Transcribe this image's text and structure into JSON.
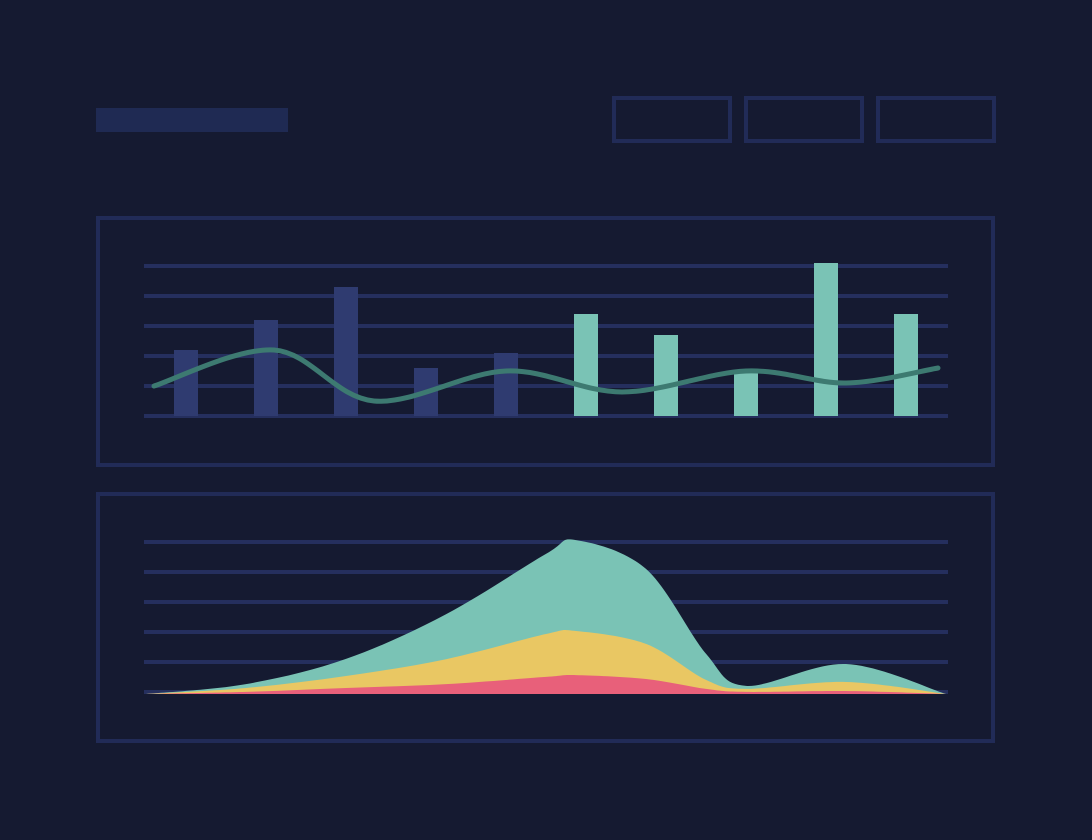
{
  "chart_data": [
    {
      "type": "bar-line",
      "categories": [
        null,
        null,
        null,
        null,
        null,
        null,
        null,
        null,
        null,
        null
      ],
      "values": [
        2.2,
        3.2,
        4.3,
        1.6,
        2.1,
        3.4,
        2.7,
        1.5,
        5.1,
        3.4
      ],
      "colors": [
        "#2f3b70",
        "#2f3b70",
        "#2f3b70",
        "#2f3b70",
        "#2f3b70",
        "#7ac3b5",
        "#7ac3b5",
        "#7ac3b5",
        "#7ac3b5",
        "#7ac3b5"
      ],
      "line": {
        "color": "#3d7a71",
        "x": [
          0.1,
          1.6,
          2.85,
          4.5,
          5.95,
          7.5,
          8.75,
          9.9
        ],
        "values": [
          1.0,
          2.2,
          0.5,
          1.5,
          0.8,
          1.5,
          1.1,
          1.6
        ]
      },
      "xlim": [
        0,
        10
      ],
      "ylim": [
        0,
        5
      ],
      "yticks": [
        0,
        1,
        2,
        3,
        4,
        5
      ],
      "grid": true
    },
    {
      "type": "stacked-area",
      "x": [
        0,
        100,
        200,
        300,
        400,
        430,
        500,
        560,
        600,
        700,
        800
      ],
      "series": [
        {
          "color": "#e8607a",
          "values": [
            0,
            0.07,
            0.2,
            0.33,
            0.57,
            0.63,
            0.5,
            0.17,
            0.07,
            0.1,
            0
          ]
        },
        {
          "color": "#e9c763",
          "values": [
            0,
            0.13,
            0.4,
            0.83,
            1.43,
            1.47,
            1.17,
            0.3,
            0.1,
            0.3,
            0
          ]
        },
        {
          "color": "#7ac3b5",
          "values": [
            0,
            0.13,
            0.57,
            1.5,
            2.67,
            3.03,
            2.5,
            0.87,
            0.1,
            0.6,
            0
          ]
        }
      ],
      "xlim": [
        0,
        800
      ],
      "ylim": [
        0,
        5
      ],
      "yticks": [
        0,
        1,
        2,
        3,
        4,
        5
      ],
      "grid": true
    }
  ]
}
